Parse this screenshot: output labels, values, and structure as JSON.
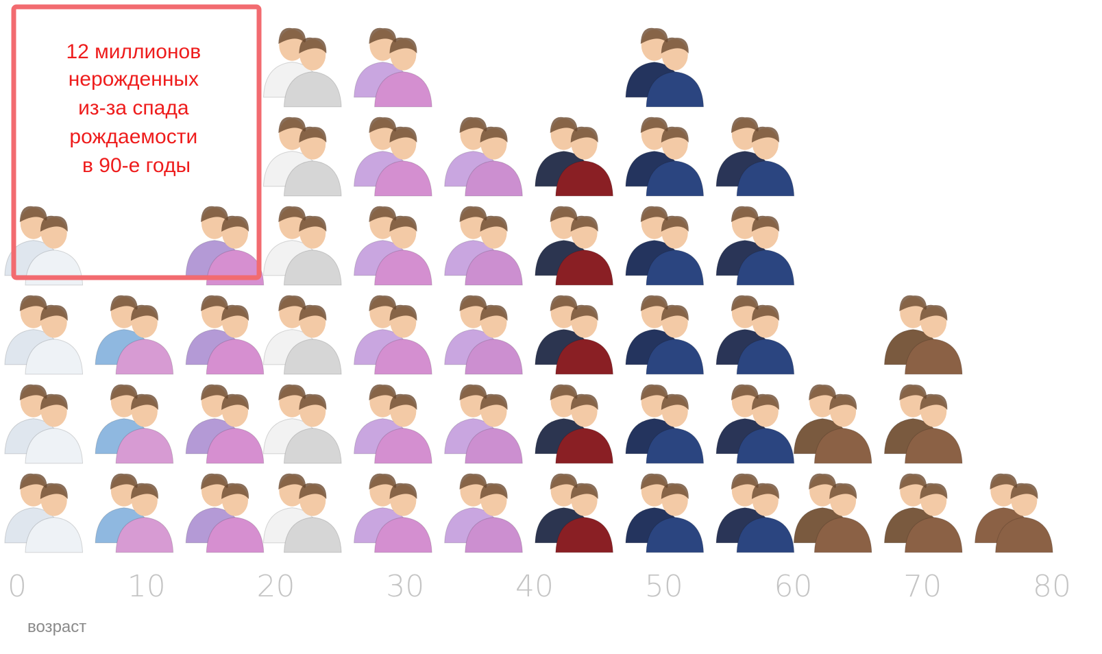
{
  "chart_data": {
    "type": "pictogram",
    "annotation": [
      "12 миллионов",
      "нерожденных",
      "из-за спада",
      "рождаемости",
      "в 90-е годы"
    ],
    "x_label": "возраст",
    "x": [
      2,
      9,
      16,
      22,
      29,
      36,
      43,
      50,
      57,
      63,
      70,
      77
    ],
    "values": [
      4,
      3,
      4,
      6,
      6,
      5,
      5,
      6,
      5,
      2,
      3,
      1
    ],
    "colors": [
      [
        "#dfe6ee",
        "#eef2f6"
      ],
      [
        "#8fb8e0",
        "#d79bd3"
      ],
      [
        "#b49ad6",
        "#d68fd0"
      ],
      [
        "#f2f2f2",
        "#d6d6d6"
      ],
      [
        "#c9a6e0",
        "#d48fd0"
      ],
      [
        "#c9a6e0",
        "#cc8fd0"
      ],
      [
        "#2c3550",
        "#8a1f24"
      ],
      [
        "#24345e",
        "#2b4580"
      ],
      [
        "#2a3557",
        "#2b4580"
      ],
      [
        "#7a5a3f",
        "#8b6145"
      ],
      [
        "#7a5a3f",
        "#8b6145"
      ],
      [
        "#8b6145",
        "#8b6145"
      ]
    ],
    "xlim": [
      0,
      80
    ],
    "xticks": [
      0,
      10,
      20,
      30,
      40,
      50,
      60,
      70,
      80
    ]
  }
}
